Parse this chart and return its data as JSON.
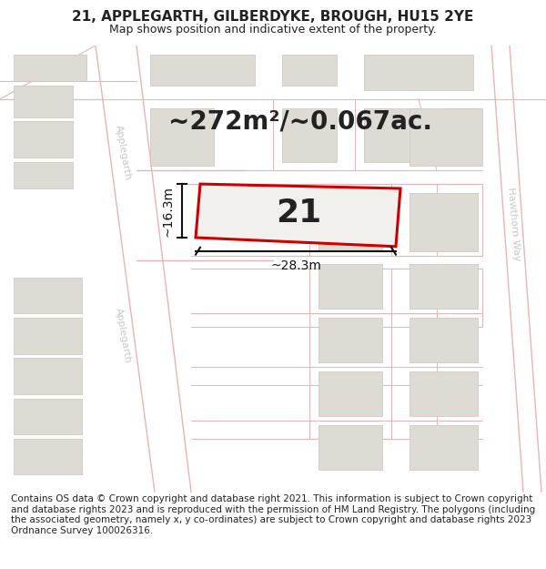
{
  "title": "21, APPLEGARTH, GILBERDYKE, BROUGH, HU15 2YE",
  "subtitle": "Map shows position and indicative extent of the property.",
  "area_text": "~272m²/~0.067ac.",
  "label_number": "21",
  "dim_width": "~28.3m",
  "dim_height": "~16.3m",
  "footer": "Contains OS data © Crown copyright and database right 2021. This information is subject to Crown copyright and database rights 2023 and is reproduced with the permission of HM Land Registry. The polygons (including the associated geometry, namely x, y co-ordinates) are subject to Crown copyright and database rights 2023 Ordnance Survey 100026316.",
  "map_bg": "#f2f0ed",
  "road_line_color": "#e8b4b4",
  "road_fill": "#ffffff",
  "plot_fill": "#f2f0ed",
  "plot_edge": "#cc0000",
  "plot_edge_width": 2.2,
  "building_fill": "#dedad4",
  "building_edge": "#c8c4be",
  "dim_color": "#111111",
  "text_color": "#222222",
  "label_road_color": "#c8c8c8",
  "title_fontsize": 11,
  "subtitle_fontsize": 9,
  "area_fontsize": 20,
  "label_fontsize": 26,
  "dim_fontsize": 10,
  "footer_fontsize": 7.5
}
